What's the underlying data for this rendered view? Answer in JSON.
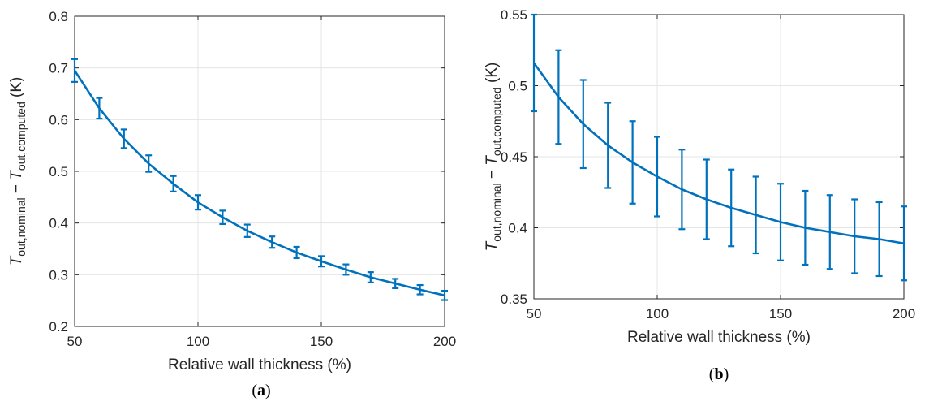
{
  "colors": {
    "series": "#0072BD",
    "axis": "#262626",
    "grid": "#e5e5e5"
  },
  "chart_data": [
    {
      "type": "line",
      "panel_label": {
        "open": "(",
        "letter": "a",
        "close": ")"
      },
      "xlabel": "Relative wall thickness (%)",
      "ylabel": {
        "main": "T",
        "sub1": "out,nominal",
        "minus": " − ",
        "main2": "T",
        "sub2": "out,computed",
        "unit": " (K)"
      },
      "xlim": [
        50,
        200
      ],
      "ylim": [
        0.2,
        0.8
      ],
      "xticks": [
        "50",
        "100",
        "150",
        "200"
      ],
      "yticks": [
        "0.2",
        "0.3",
        "0.4",
        "0.5",
        "0.6",
        "0.7",
        "0.8"
      ],
      "grid": true,
      "series": [
        {
          "x": [
            50,
            60,
            70,
            80,
            90,
            100,
            110,
            120,
            130,
            140,
            150,
            160,
            170,
            180,
            190,
            200
          ],
          "y": [
            0.695,
            0.622,
            0.563,
            0.515,
            0.476,
            0.44,
            0.411,
            0.385,
            0.363,
            0.343,
            0.326,
            0.31,
            0.295,
            0.283,
            0.271,
            0.26
          ],
          "err": [
            0.022,
            0.02,
            0.018,
            0.016,
            0.015,
            0.014,
            0.013,
            0.012,
            0.011,
            0.011,
            0.01,
            0.01,
            0.01,
            0.009,
            0.009,
            0.009
          ]
        }
      ]
    },
    {
      "type": "line",
      "panel_label": {
        "open": "(",
        "letter": "b",
        "close": ")"
      },
      "xlabel": "Relative wall thickness (%)",
      "ylabel": {
        "main": "T",
        "sub1": "out,nominal",
        "minus": " − ",
        "main2": "T",
        "sub2": "out,computed",
        "unit": " (K)"
      },
      "xlim": [
        50,
        200
      ],
      "ylim": [
        0.35,
        0.55
      ],
      "xticks": [
        "50",
        "100",
        "150",
        "200"
      ],
      "yticks": [
        "0.35",
        "0.4",
        "0.45",
        "0.5",
        "0.55"
      ],
      "grid": true,
      "series": [
        {
          "x": [
            50,
            60,
            70,
            80,
            90,
            100,
            110,
            120,
            130,
            140,
            150,
            160,
            170,
            180,
            190,
            200
          ],
          "y": [
            0.516,
            0.492,
            0.473,
            0.458,
            0.446,
            0.436,
            0.427,
            0.42,
            0.414,
            0.409,
            0.404,
            0.4,
            0.397,
            0.394,
            0.392,
            0.389
          ],
          "err": [
            0.034,
            0.033,
            0.031,
            0.03,
            0.029,
            0.028,
            0.028,
            0.028,
            0.027,
            0.027,
            0.027,
            0.026,
            0.026,
            0.026,
            0.026,
            0.026
          ]
        }
      ]
    }
  ]
}
